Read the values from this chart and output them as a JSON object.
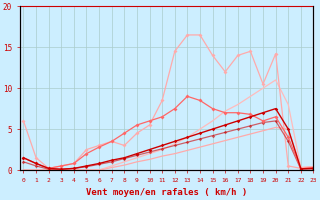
{
  "xlabel": "Vent moyen/en rafales ( km/h )",
  "background_color": "#cceeff",
  "grid_color": "#aacccc",
  "x_ticks": [
    0,
    1,
    2,
    3,
    4,
    5,
    6,
    7,
    8,
    9,
    10,
    11,
    12,
    13,
    14,
    15,
    16,
    17,
    18,
    19,
    20,
    21,
    22,
    23
  ],
  "ylim": [
    0,
    20
  ],
  "xlim": [
    -0.3,
    23
  ],
  "lines": [
    {
      "y": [
        0,
        0,
        0,
        0,
        0,
        0,
        0,
        0.3,
        0.6,
        1.0,
        1.3,
        1.7,
        2.0,
        2.4,
        2.8,
        3.2,
        3.6,
        4.0,
        4.4,
        4.8,
        5.2,
        5.0,
        0.3,
        0.4
      ],
      "color": "#ffaaaa",
      "lw": 0.9,
      "marker": null,
      "ms": 0,
      "alpha": 1.0,
      "zorder": 1
    },
    {
      "y": [
        0,
        0,
        0,
        0,
        0,
        0,
        0,
        0.5,
        1.0,
        1.5,
        2.0,
        2.5,
        3.2,
        4.0,
        5.0,
        6.0,
        7.2,
        8.0,
        9.0,
        10.0,
        11.0,
        8.0,
        0.3,
        0.4
      ],
      "color": "#ffbbbb",
      "lw": 0.9,
      "marker": null,
      "ms": 0,
      "alpha": 1.0,
      "zorder": 1
    },
    {
      "y": [
        1.5,
        0.8,
        0.2,
        0.1,
        0.2,
        0.5,
        0.8,
        1.2,
        1.5,
        2.0,
        2.5,
        3.0,
        3.5,
        4.0,
        4.5,
        5.0,
        5.5,
        6.0,
        6.5,
        7.0,
        7.5,
        5.0,
        0.15,
        0.2
      ],
      "color": "#cc0000",
      "lw": 1.0,
      "marker": "D",
      "ms": 1.8,
      "alpha": 1.0,
      "zorder": 4
    },
    {
      "y": [
        1.0,
        0.5,
        0.1,
        0.1,
        0.2,
        0.4,
        0.7,
        1.0,
        1.4,
        1.8,
        2.2,
        2.6,
        3.0,
        3.4,
        3.8,
        4.2,
        4.6,
        5.0,
        5.4,
        5.8,
        6.0,
        3.5,
        0.1,
        0.15
      ],
      "color": "#cc0000",
      "lw": 0.9,
      "marker": "D",
      "ms": 1.8,
      "alpha": 0.6,
      "zorder": 3
    },
    {
      "y": [
        6.0,
        1.5,
        0.2,
        0.5,
        0.8,
        2.5,
        3.0,
        3.5,
        3.0,
        4.5,
        5.5,
        8.5,
        14.5,
        16.5,
        16.5,
        14.0,
        12.0,
        14.0,
        14.5,
        10.5,
        14.2,
        0.5,
        0.2,
        0.4
      ],
      "color": "#ffaaaa",
      "lw": 0.9,
      "marker": "D",
      "ms": 2.0,
      "alpha": 1.0,
      "zorder": 2
    },
    {
      "y": [
        1.5,
        0.8,
        0.2,
        0.5,
        0.8,
        2.0,
        2.8,
        3.5,
        4.5,
        5.5,
        6.0,
        6.5,
        7.5,
        9.0,
        8.5,
        7.5,
        7.0,
        7.0,
        6.8,
        6.0,
        6.5,
        4.0,
        0.15,
        0.3
      ],
      "color": "#ff6666",
      "lw": 0.9,
      "marker": "D",
      "ms": 2.0,
      "alpha": 1.0,
      "zorder": 3
    }
  ]
}
